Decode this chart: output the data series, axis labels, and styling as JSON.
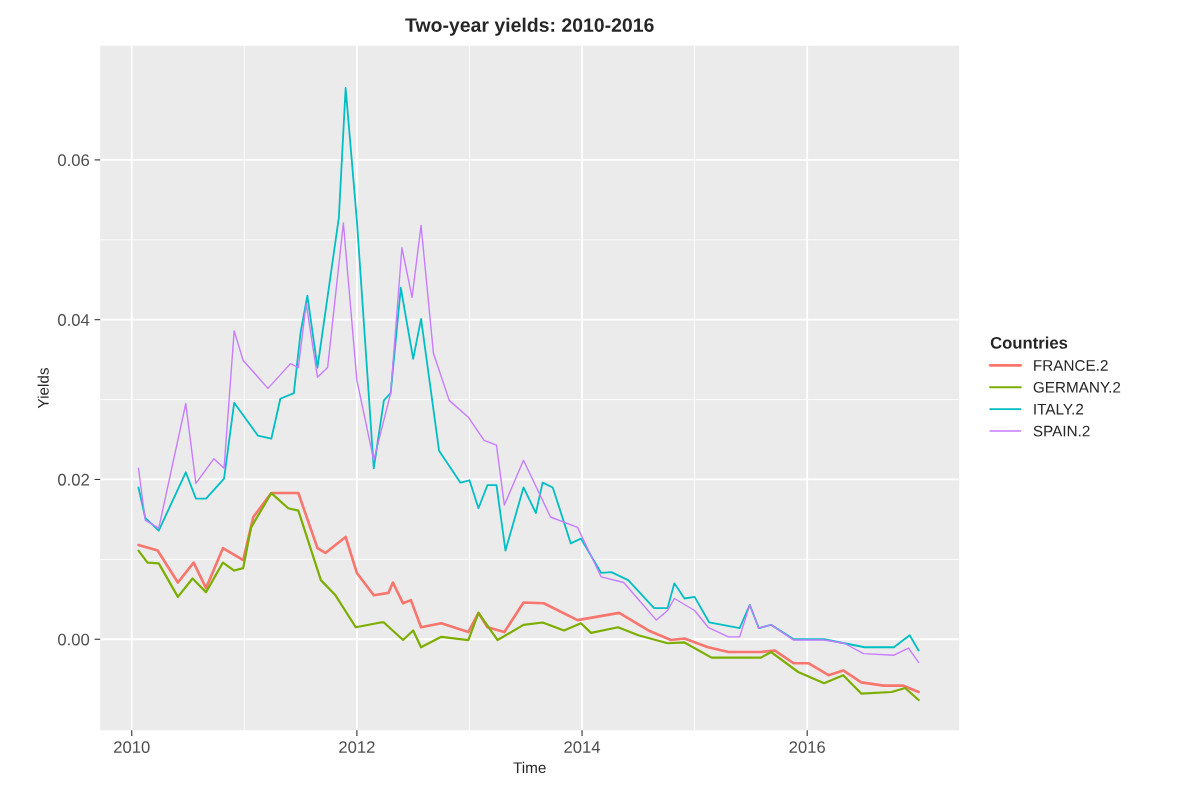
{
  "chart_data": {
    "type": "line",
    "title": "Two-year yields: 2010-2016",
    "xlabel": "Time",
    "ylabel": "Yields",
    "legend_title": "Countries",
    "legend": "right",
    "grid": true,
    "xlim": [
      2009.72,
      2017.35
    ],
    "xticks": [
      2010,
      2012,
      2014,
      2016
    ],
    "ylim": [
      -0.0114,
      0.0743
    ],
    "yticks": [
      {
        "value": 0,
        "label": "0.00"
      },
      {
        "value": 0.02,
        "label": "0.02"
      },
      {
        "value": 0.04,
        "label": "0.04"
      },
      {
        "value": 0.06,
        "label": "0.06"
      }
    ],
    "series": [
      {
        "name": "FRANCE.2",
        "color": "#f8766d",
        "x": [
          2010.06,
          2010.23,
          2010.41,
          2010.55,
          2010.66,
          2010.81,
          2010.99,
          2011.08,
          2011.24,
          2011.48,
          2011.65,
          2011.72,
          2011.9,
          2012.0,
          2012.15,
          2012.28,
          2012.32,
          2012.41,
          2012.48,
          2012.57,
          2012.75,
          2012.99,
          2013.08,
          2013.16,
          2013.31,
          2013.48,
          2013.66,
          2013.96,
          2014.33,
          2014.59,
          2014.79,
          2014.91,
          2015.12,
          2015.3,
          2015.59,
          2015.71,
          2015.88,
          2016.01,
          2016.19,
          2016.32,
          2016.48,
          2016.68,
          2016.85,
          2016.99
        ],
        "values": [
          0.0118,
          0.0111,
          0.0071,
          0.0096,
          0.0064,
          0.0114,
          0.0099,
          0.0153,
          0.0183,
          0.0183,
          0.0114,
          0.0108,
          0.0128,
          0.0083,
          0.0055,
          0.0058,
          0.0071,
          0.0045,
          0.0049,
          0.0015,
          0.002,
          0.0009,
          0.0033,
          0.0015,
          0.0009,
          0.0046,
          0.0045,
          0.0024,
          0.0033,
          0.0011,
          -0.0001,
          0.0001,
          -0.001,
          -0.0016,
          -0.0016,
          -0.0014,
          -0.003,
          -0.003,
          -0.0045,
          -0.0039,
          -0.0054,
          -0.0058,
          -0.0058,
          -0.0066
        ]
      },
      {
        "name": "GERMANY.2",
        "color": "#7cae00",
        "x": [
          2010.06,
          2010.14,
          2010.24,
          2010.41,
          2010.54,
          2010.66,
          2010.81,
          2010.91,
          2010.99,
          2011.06,
          2011.24,
          2011.39,
          2011.48,
          2011.68,
          2011.81,
          2011.99,
          2012.21,
          2012.24,
          2012.41,
          2012.5,
          2012.57,
          2012.75,
          2012.99,
          2013.08,
          2013.25,
          2013.48,
          2013.65,
          2013.84,
          2013.99,
          2014.08,
          2014.32,
          2014.5,
          2014.76,
          2014.91,
          2015.15,
          2015.59,
          2015.68,
          2015.92,
          2016.15,
          2016.32,
          2016.48,
          2016.75,
          2016.87,
          2016.99
        ],
        "values": [
          0.0111,
          0.0096,
          0.0095,
          0.0053,
          0.0076,
          0.0059,
          0.0096,
          0.0086,
          0.0089,
          0.014,
          0.0183,
          0.0164,
          0.0161,
          0.0074,
          0.0055,
          0.0015,
          0.0021,
          0.0021,
          -0.0001,
          0.0011,
          -0.001,
          0.0003,
          -0.0001,
          0.0033,
          -0.0001,
          0.0018,
          0.0021,
          0.0011,
          0.002,
          0.0008,
          0.0015,
          0.0005,
          -0.0005,
          -0.0004,
          -0.0023,
          -0.0023,
          -0.0016,
          -0.0041,
          -0.0055,
          -0.0045,
          -0.0068,
          -0.0066,
          -0.0061,
          -0.0076
        ]
      },
      {
        "name": "ITALY.2",
        "color": "#00bfc4",
        "x": [
          2010.06,
          2010.12,
          2010.24,
          2010.48,
          2010.57,
          2010.66,
          2010.82,
          2010.91,
          2011.12,
          2011.24,
          2011.32,
          2011.44,
          2011.5,
          2011.56,
          2011.65,
          2011.84,
          2011.9,
          2012.0,
          2012.15,
          2012.24,
          2012.3,
          2012.39,
          2012.5,
          2012.57,
          2012.73,
          2012.92,
          2013.0,
          2013.08,
          2013.16,
          2013.24,
          2013.32,
          2013.48,
          2013.59,
          2013.65,
          2013.74,
          2013.9,
          2013.99,
          2014.17,
          2014.26,
          2014.41,
          2014.64,
          2014.76,
          2014.82,
          2014.91,
          2015.0,
          2015.13,
          2015.4,
          2015.49,
          2015.57,
          2015.68,
          2015.88,
          2016.15,
          2016.51,
          2016.77,
          2016.91,
          2016.99
        ],
        "values": [
          0.019,
          0.0152,
          0.0136,
          0.0209,
          0.0176,
          0.0176,
          0.0201,
          0.0296,
          0.0255,
          0.0251,
          0.0301,
          0.0308,
          0.0384,
          0.043,
          0.034,
          0.0528,
          0.069,
          0.0524,
          0.0214,
          0.0299,
          0.0308,
          0.044,
          0.0351,
          0.0401,
          0.0236,
          0.0196,
          0.0199,
          0.0164,
          0.0193,
          0.0193,
          0.0111,
          0.019,
          0.0158,
          0.0196,
          0.019,
          0.012,
          0.0126,
          0.0083,
          0.0084,
          0.0074,
          0.0039,
          0.0039,
          0.007,
          0.0051,
          0.0053,
          0.0021,
          0.0014,
          0.0043,
          0.0014,
          0.0018,
          0.0,
          0.0,
          -0.001,
          -0.001,
          0.0005,
          -0.0014
        ]
      },
      {
        "name": "SPAIN.2",
        "color": "#c77cff",
        "x": [
          2010.06,
          2010.12,
          2010.24,
          2010.48,
          2010.57,
          2010.73,
          2010.82,
          2010.91,
          2010.99,
          2011.21,
          2011.41,
          2011.48,
          2011.55,
          2011.65,
          2011.74,
          2011.88,
          2012.0,
          2012.15,
          2012.3,
          2012.4,
          2012.49,
          2012.57,
          2012.68,
          2012.82,
          2012.99,
          2013.13,
          2013.24,
          2013.31,
          2013.48,
          2013.72,
          2013.96,
          2014.17,
          2014.37,
          2014.66,
          2014.76,
          2014.82,
          2015.0,
          2015.12,
          2015.3,
          2015.4,
          2015.49,
          2015.57,
          2015.68,
          2015.88,
          2016.15,
          2016.33,
          2016.5,
          2016.77,
          2016.9,
          2016.99
        ],
        "values": [
          0.0214,
          0.0149,
          0.0139,
          0.0295,
          0.0195,
          0.0226,
          0.0214,
          0.0386,
          0.0349,
          0.0314,
          0.0345,
          0.034,
          0.042,
          0.0328,
          0.034,
          0.0521,
          0.0324,
          0.0224,
          0.0308,
          0.049,
          0.0428,
          0.0518,
          0.0358,
          0.0299,
          0.0278,
          0.0249,
          0.0243,
          0.0168,
          0.0224,
          0.0153,
          0.014,
          0.0078,
          0.0071,
          0.0024,
          0.0036,
          0.0051,
          0.0036,
          0.0015,
          0.0003,
          0.0003,
          0.0043,
          0.0014,
          0.0018,
          -0.0001,
          -0.0001,
          -0.0005,
          -0.0018,
          -0.002,
          -0.0011,
          -0.0029
        ]
      }
    ]
  }
}
